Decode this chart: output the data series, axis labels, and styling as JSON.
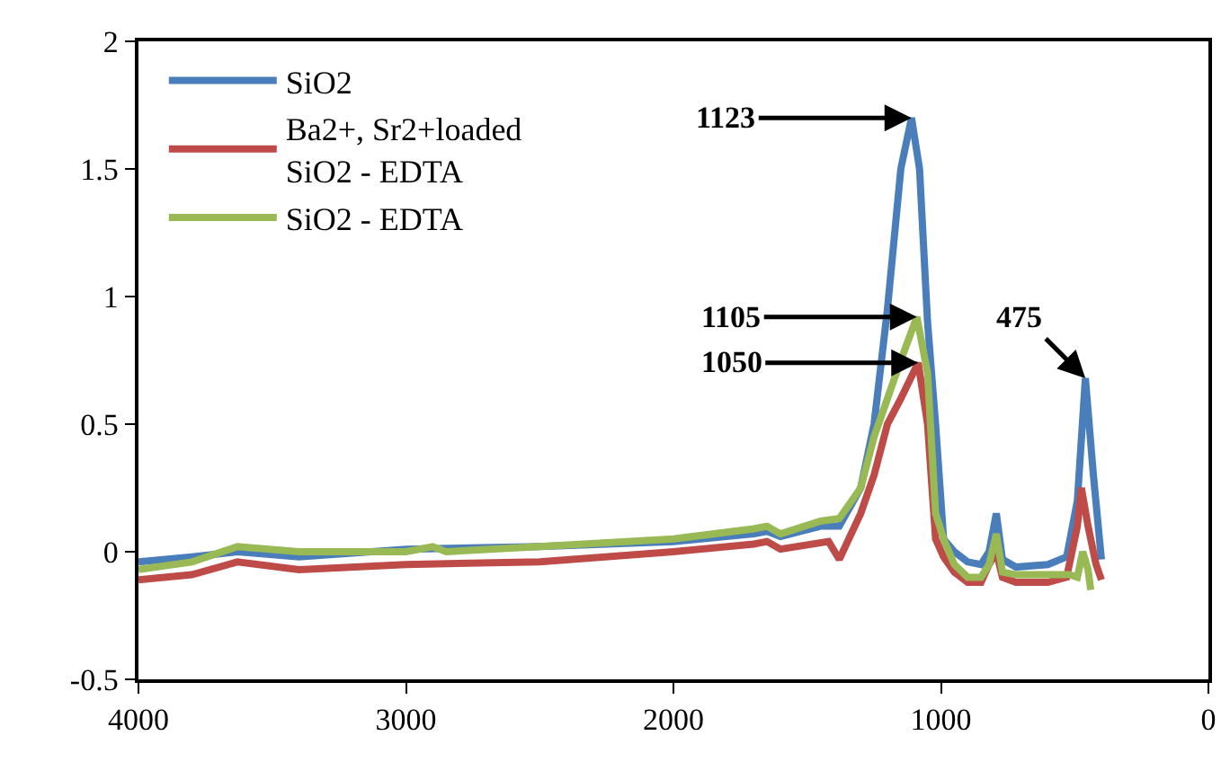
{
  "chart_data": {
    "type": "line",
    "xlim": [
      4000,
      0
    ],
    "xticks": [
      4000,
      3000,
      2000,
      1000,
      0
    ],
    "ylim": [
      -0.5,
      2
    ],
    "yticks": [
      -0.5,
      0,
      0.5,
      1,
      1.5,
      2
    ],
    "legend": "top left",
    "marker": "none",
    "line_style": "solid",
    "series": [
      {
        "name": "SiO2",
        "color": "#4a7ebb",
        "x": [
          4000,
          3800,
          3630,
          3400,
          3000,
          2500,
          2000,
          1700,
          1650,
          1600,
          1450,
          1380,
          1300,
          1250,
          1200,
          1150,
          1110,
          1080,
          1050,
          1020,
          990,
          950,
          900,
          850,
          820,
          793,
          770,
          720,
          600,
          530,
          490,
          460,
          430,
          400
        ],
        "values": [
          -0.04,
          -0.02,
          0.0,
          -0.02,
          0.01,
          0.02,
          0.04,
          0.07,
          0.08,
          0.06,
          0.1,
          0.1,
          0.25,
          0.5,
          0.95,
          1.5,
          1.7,
          1.5,
          0.9,
          0.5,
          0.05,
          0.0,
          -0.04,
          -0.05,
          0.0,
          0.15,
          -0.03,
          -0.06,
          -0.05,
          -0.02,
          0.2,
          0.68,
          0.3,
          -0.03
        ]
      },
      {
        "name": "Ba2+, Sr2+loaded SiO2 - EDTA",
        "color": "#be4b48",
        "x": [
          4000,
          3800,
          3630,
          3400,
          3000,
          2500,
          2000,
          1700,
          1650,
          1600,
          1420,
          1380,
          1300,
          1250,
          1200,
          1150,
          1085,
          1050,
          1020,
          990,
          950,
          900,
          850,
          820,
          793,
          770,
          720,
          600,
          530,
          490,
          475,
          450,
          420,
          400
        ],
        "values": [
          -0.11,
          -0.09,
          -0.04,
          -0.07,
          -0.05,
          -0.04,
          0.0,
          0.03,
          0.04,
          0.01,
          0.04,
          -0.03,
          0.15,
          0.3,
          0.5,
          0.6,
          0.74,
          0.5,
          0.05,
          -0.02,
          -0.08,
          -0.12,
          -0.12,
          -0.05,
          0.0,
          -0.1,
          -0.12,
          -0.12,
          -0.1,
          0.1,
          0.25,
          0.1,
          -0.05,
          -0.11
        ]
      },
      {
        "name": "SiO2 - EDTA",
        "color": "#98b954",
        "x": [
          4000,
          3800,
          3630,
          3400,
          3000,
          2900,
          2850,
          2500,
          2000,
          1700,
          1650,
          1600,
          1450,
          1380,
          1300,
          1250,
          1200,
          1150,
          1090,
          1050,
          1020,
          990,
          950,
          900,
          850,
          820,
          793,
          770,
          720,
          600,
          520,
          490,
          470,
          450,
          440
        ],
        "values": [
          -0.07,
          -0.04,
          0.02,
          0.0,
          0.0,
          0.02,
          0.0,
          0.02,
          0.05,
          0.09,
          0.1,
          0.07,
          0.12,
          0.13,
          0.25,
          0.45,
          0.6,
          0.75,
          0.92,
          0.7,
          0.15,
          0.05,
          -0.05,
          -0.1,
          -0.1,
          -0.05,
          0.07,
          -0.08,
          -0.09,
          -0.09,
          -0.09,
          -0.1,
          0.0,
          -0.07,
          -0.15
        ]
      }
    ],
    "annotations": [
      {
        "text": "1123",
        "x": 1110,
        "y": 1.7
      },
      {
        "text": "1105",
        "x": 1090,
        "y": 0.92
      },
      {
        "text": "1050",
        "x": 1085,
        "y": 0.74
      },
      {
        "text": "475",
        "x": 460,
        "y": 0.68
      }
    ]
  }
}
